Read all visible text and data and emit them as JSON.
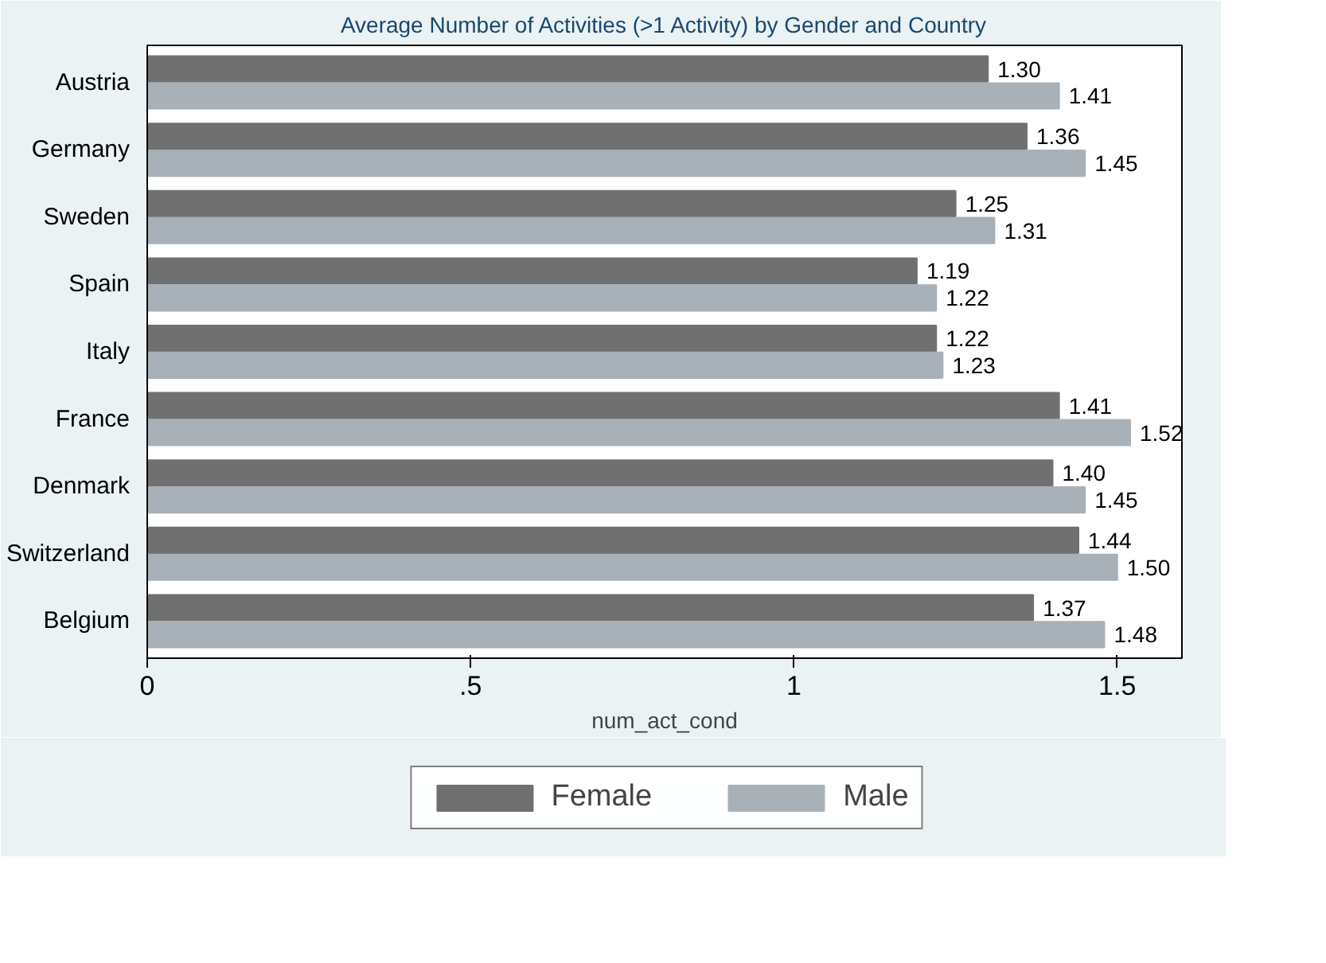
{
  "chart_data": {
    "type": "bar",
    "orientation": "horizontal",
    "title": "Average Number of Activities (>1 Activity) by Gender and Country",
    "xlabel": "num_act_cond",
    "categories": [
      "Austria",
      "Germany",
      "Sweden",
      "Spain",
      "Italy",
      "France",
      "Denmark",
      "Switzerland",
      "Belgium"
    ],
    "series": [
      {
        "name": "Female",
        "color": "#707070",
        "values": [
          1.3,
          1.36,
          1.25,
          1.19,
          1.22,
          1.41,
          1.4,
          1.44,
          1.37
        ],
        "value_labels": [
          "1.30",
          "1.36",
          "1.25",
          "1.19",
          "1.22",
          "1.41",
          "1.40",
          "1.44",
          "1.37"
        ]
      },
      {
        "name": "Male",
        "color": "#a8b0b8",
        "values": [
          1.41,
          1.45,
          1.31,
          1.22,
          1.23,
          1.52,
          1.45,
          1.5,
          1.48
        ],
        "value_labels": [
          "1.41",
          "1.45",
          "1.31",
          "1.22",
          "1.23",
          "1.52",
          "1.45",
          "1.50",
          "1.48"
        ]
      }
    ],
    "xlim": [
      0,
      1.6
    ],
    "xticks": [
      0,
      {
        "value": 0.5,
        "label": ".5"
      },
      1,
      1.5
    ],
    "grid": false,
    "legend": "bottom"
  }
}
